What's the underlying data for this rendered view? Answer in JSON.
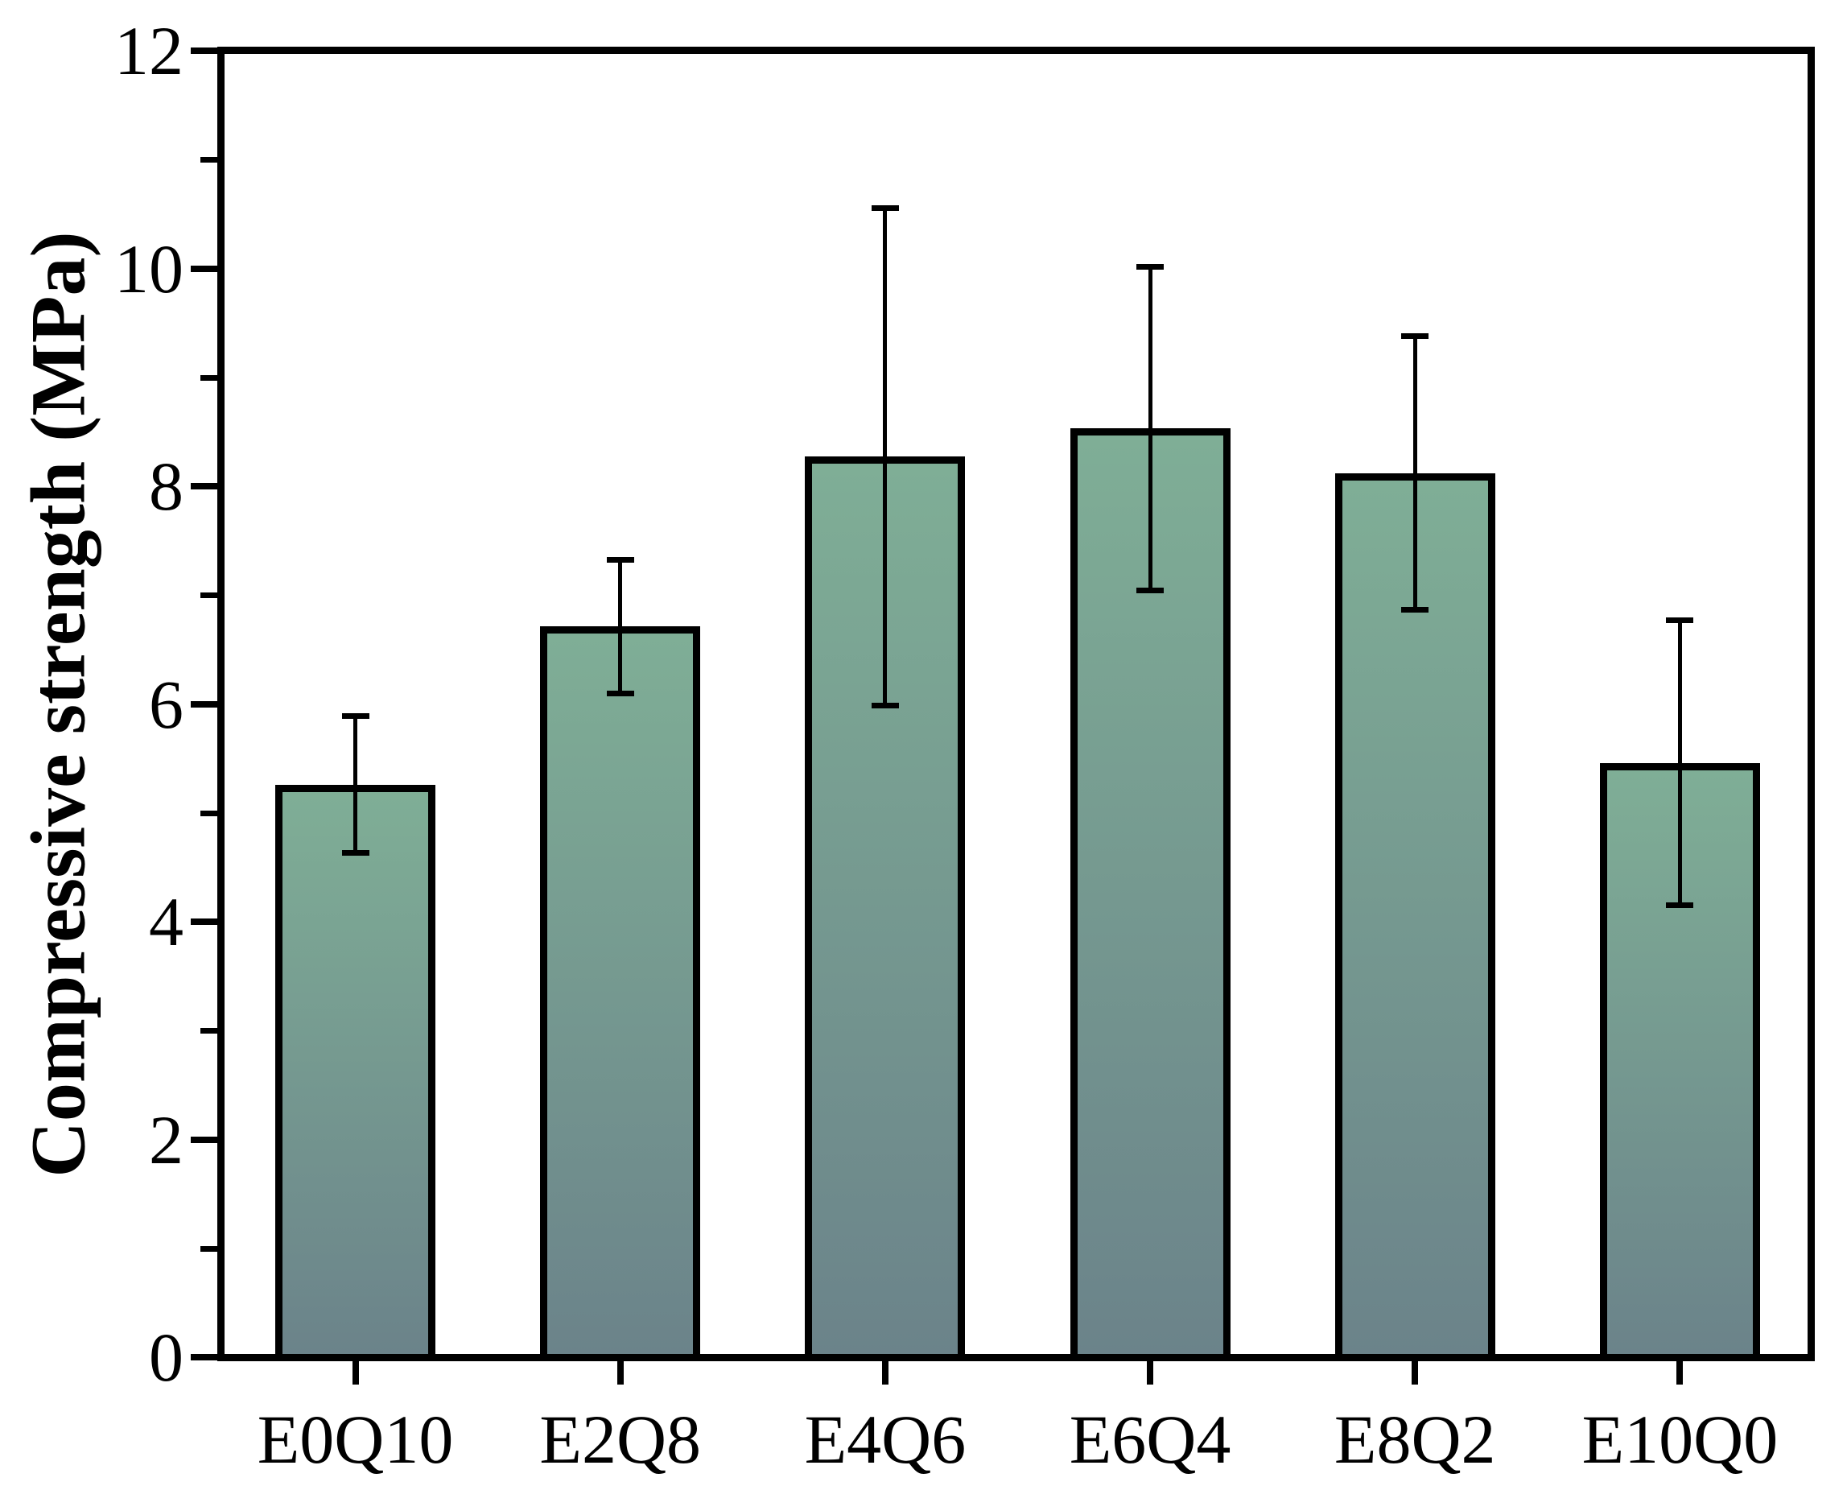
{
  "figure": {
    "background": "#ffffff"
  },
  "chart_data": {
    "type": "bar",
    "title": "",
    "xlabel": "",
    "ylabel": "Compressive strength (MPa)",
    "categories": [
      "E0Q10",
      "E2Q8",
      "E4Q6",
      "E6Q4",
      "E8Q2",
      "E10Q0"
    ],
    "values": [
      5.26,
      6.71,
      8.27,
      8.53,
      8.12,
      5.46
    ],
    "errors": [
      0.63,
      0.62,
      2.29,
      1.49,
      1.26,
      1.31
    ],
    "ylim": [
      0,
      12
    ],
    "ytick_values": [
      0,
      2,
      4,
      6,
      8,
      10,
      12
    ],
    "ytick_labels": [
      "0",
      "2",
      "4",
      "6",
      "8",
      "10",
      "12"
    ],
    "yminor_values": [
      1,
      3,
      5,
      7,
      9,
      11
    ],
    "grid": false,
    "legend": null,
    "colors": {
      "bar_fill_top": "#7FAE96",
      "bar_fill_bottom": "#6B838A",
      "bar_stroke": "#000000",
      "axis": "#000000",
      "background": "#ffffff"
    }
  }
}
